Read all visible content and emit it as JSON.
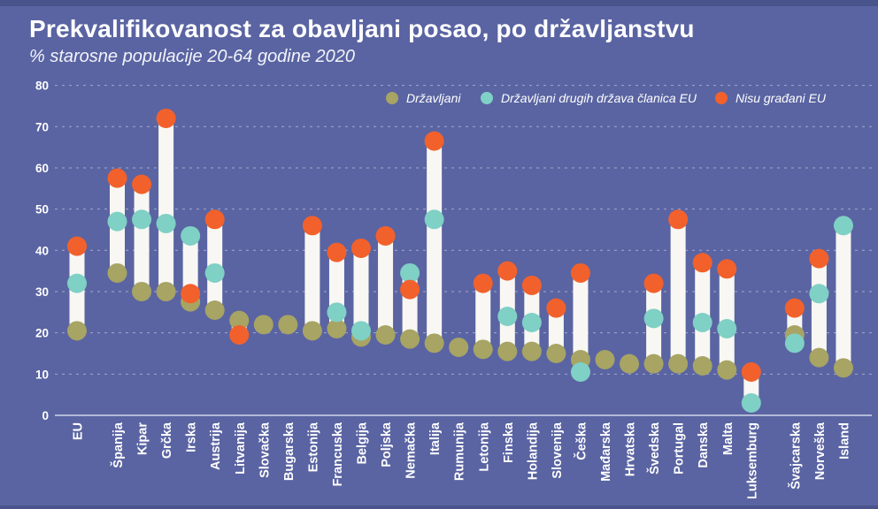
{
  "header": {
    "title": "Prekvalifikovanost za obavljani posao, po državljanstvu",
    "subtitle": "% starosne populacije 20-64 godine 2020"
  },
  "chart_data": {
    "type": "scatter",
    "subtype": "dot-range-columns",
    "title": "Prekvalifikovanost za obavljani posao, po državljanstvu",
    "subtitle": "% starosne populacije 20-64 godine 2020",
    "ylabel": "",
    "xlabel": "",
    "ylim": [
      0,
      80
    ],
    "ytick_step": 10,
    "ytick_labels": [
      "0",
      "10",
      "20",
      "30",
      "40",
      "50",
      "60",
      "70",
      "80"
    ],
    "grid": true,
    "legend_position": "top",
    "background_color": "#5a64a2",
    "bar_color": "#f8f7f3",
    "gap_after_indices": [
      0,
      27
    ],
    "categories": [
      "EU",
      "Španija",
      "Kipar",
      "Grčka",
      "Irska",
      "Austrija",
      "Litvanija",
      "Slovačka",
      "Bugarska",
      "Estonija",
      "Francuska",
      "Belgija",
      "Poljska",
      "Nemačka",
      "Italija",
      "Rumunija",
      "Letonija",
      "Finska",
      "Holandija",
      "Slovenija",
      "Češka",
      "Mađarska",
      "Hrvatska",
      "Švedska",
      "Portugal",
      "Danska",
      "Malta",
      "Luksemburg",
      "Švajcarska",
      "Norveška",
      "Island"
    ],
    "series": [
      {
        "name": "Državljani",
        "color": "#a7a464",
        "values": [
          20.5,
          34.5,
          30,
          30,
          27.5,
          25.5,
          23,
          22,
          22,
          20.5,
          21,
          19,
          19.5,
          18.5,
          17.5,
          16.5,
          16,
          15.5,
          15.5,
          15,
          13.5,
          13.5,
          12.5,
          12.5,
          12.5,
          12,
          11,
          null,
          19.5,
          14,
          11.5
        ]
      },
      {
        "name": "Državljani drugih država članica EU",
        "color": "#7fd0c5",
        "values": [
          32,
          47,
          47.5,
          46.5,
          43.5,
          34.5,
          null,
          null,
          null,
          null,
          25,
          20.5,
          null,
          34.5,
          47.5,
          null,
          null,
          24,
          22.5,
          null,
          10.5,
          null,
          null,
          23.5,
          null,
          22.5,
          21,
          3,
          17.5,
          29.5,
          46
        ]
      },
      {
        "name": "Nisu građani EU",
        "color": "#f2612c",
        "values": [
          41,
          57.5,
          56,
          72,
          29.5,
          47.5,
          19.5,
          null,
          null,
          46,
          39.5,
          40.5,
          43.5,
          30.5,
          66.5,
          null,
          32,
          35,
          31.5,
          26,
          34.5,
          null,
          null,
          32,
          47.5,
          37,
          35.5,
          10.5,
          26,
          38,
          null
        ]
      }
    ]
  }
}
